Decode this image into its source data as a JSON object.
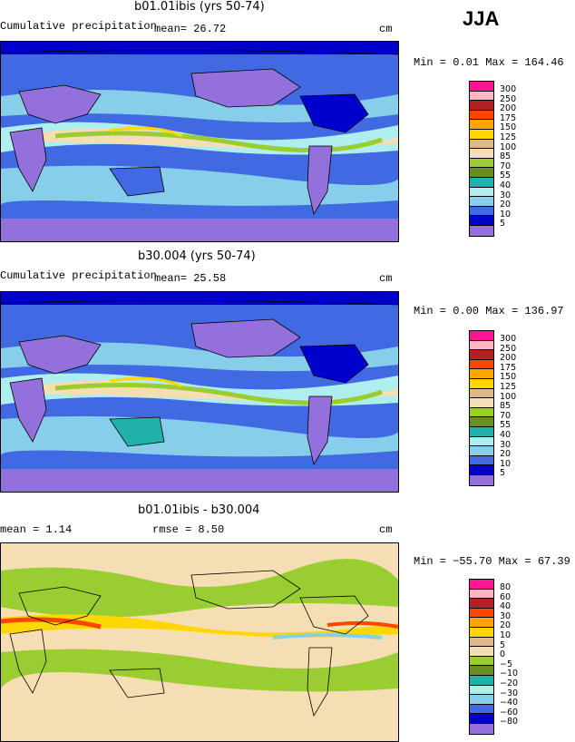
{
  "season": "JJA",
  "panels": [
    {
      "title": "b01.01ibis (yrs 50-74)",
      "variable": "Cumulative precipitation",
      "stat_text": "mean=  26.72",
      "units": "cm",
      "minmax_text": "Min =   0.01 Max = 164.46",
      "legend_labels": [
        "300",
        "250",
        "200",
        "175",
        "150",
        "125",
        "100",
        "85",
        "70",
        "55",
        "40",
        "30",
        "20",
        "10",
        "5"
      ],
      "legend_colors": [
        "#ff1493",
        "#ffb6c1",
        "#b22222",
        "#ff4500",
        "#ffa500",
        "#ffd700",
        "#deb887",
        "#f5deb3",
        "#9acd32",
        "#6b8e23",
        "#20b2aa",
        "#afeeee",
        "#87ceeb",
        "#4169e1",
        "#0000cd",
        "#9370db"
      ]
    },
    {
      "title": "b30.004 (yrs 50-74)",
      "variable": "Cumulative precipitation",
      "stat_text": "mean=  25.58",
      "units": "cm",
      "minmax_text": "Min =   0.00 Max = 136.97",
      "legend_labels": [
        "300",
        "250",
        "200",
        "175",
        "150",
        "125",
        "100",
        "85",
        "70",
        "55",
        "40",
        "30",
        "20",
        "10",
        "5"
      ],
      "legend_colors": [
        "#ff1493",
        "#ffb6c1",
        "#b22222",
        "#ff4500",
        "#ffa500",
        "#ffd700",
        "#deb887",
        "#f5deb3",
        "#9acd32",
        "#6b8e23",
        "#20b2aa",
        "#afeeee",
        "#87ceeb",
        "#4169e1",
        "#0000cd",
        "#9370db"
      ]
    },
    {
      "title": "b01.01ibis - b30.004",
      "stat_text": "mean =   1.14",
      "rmse_text": "rmse =   8.50",
      "units": "cm",
      "minmax_text": "Min = −55.70 Max =  67.39",
      "legend_labels": [
        "80",
        "60",
        "40",
        "30",
        "20",
        "10",
        "5",
        "0",
        "−5",
        "−10",
        "−20",
        "−30",
        "−40",
        "−60",
        "−80"
      ],
      "legend_colors": [
        "#ff1493",
        "#ffb6c1",
        "#b22222",
        "#ff4500",
        "#ffa500",
        "#ffd700",
        "#deb887",
        "#f5deb3",
        "#9acd32",
        "#6b8e23",
        "#20b2aa",
        "#afeeee",
        "#87ceeb",
        "#4169e1",
        "#0000cd",
        "#9370db"
      ]
    }
  ]
}
